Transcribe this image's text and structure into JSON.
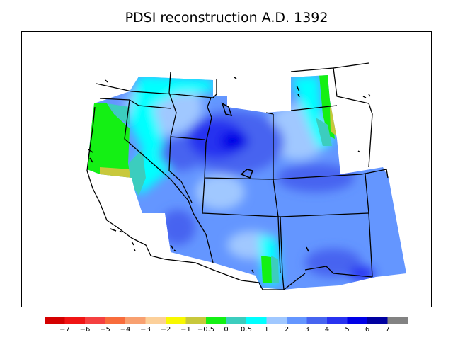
{
  "title": "PDSI reconstruction A.D. 1392",
  "colorbar": {
    "colors": [
      "#d40000",
      "#f01414",
      "#f54040",
      "#f86c3c",
      "#f8a070",
      "#fcd09a",
      "#f8f800",
      "#c8c83c",
      "#14f014",
      "#3ccdbe",
      "#00ffff",
      "#a0c8ff",
      "#6496ff",
      "#4664f0",
      "#2832f0",
      "#0000e6",
      "#0000a0",
      "#828282"
    ],
    "labels": [
      "−7",
      "−6",
      "−5",
      "−4",
      "−3",
      "−2",
      "−1",
      "−0.5",
      "0",
      "0.5",
      "1",
      "2",
      "3",
      "4",
      "5",
      "6",
      "7"
    ]
  }
}
